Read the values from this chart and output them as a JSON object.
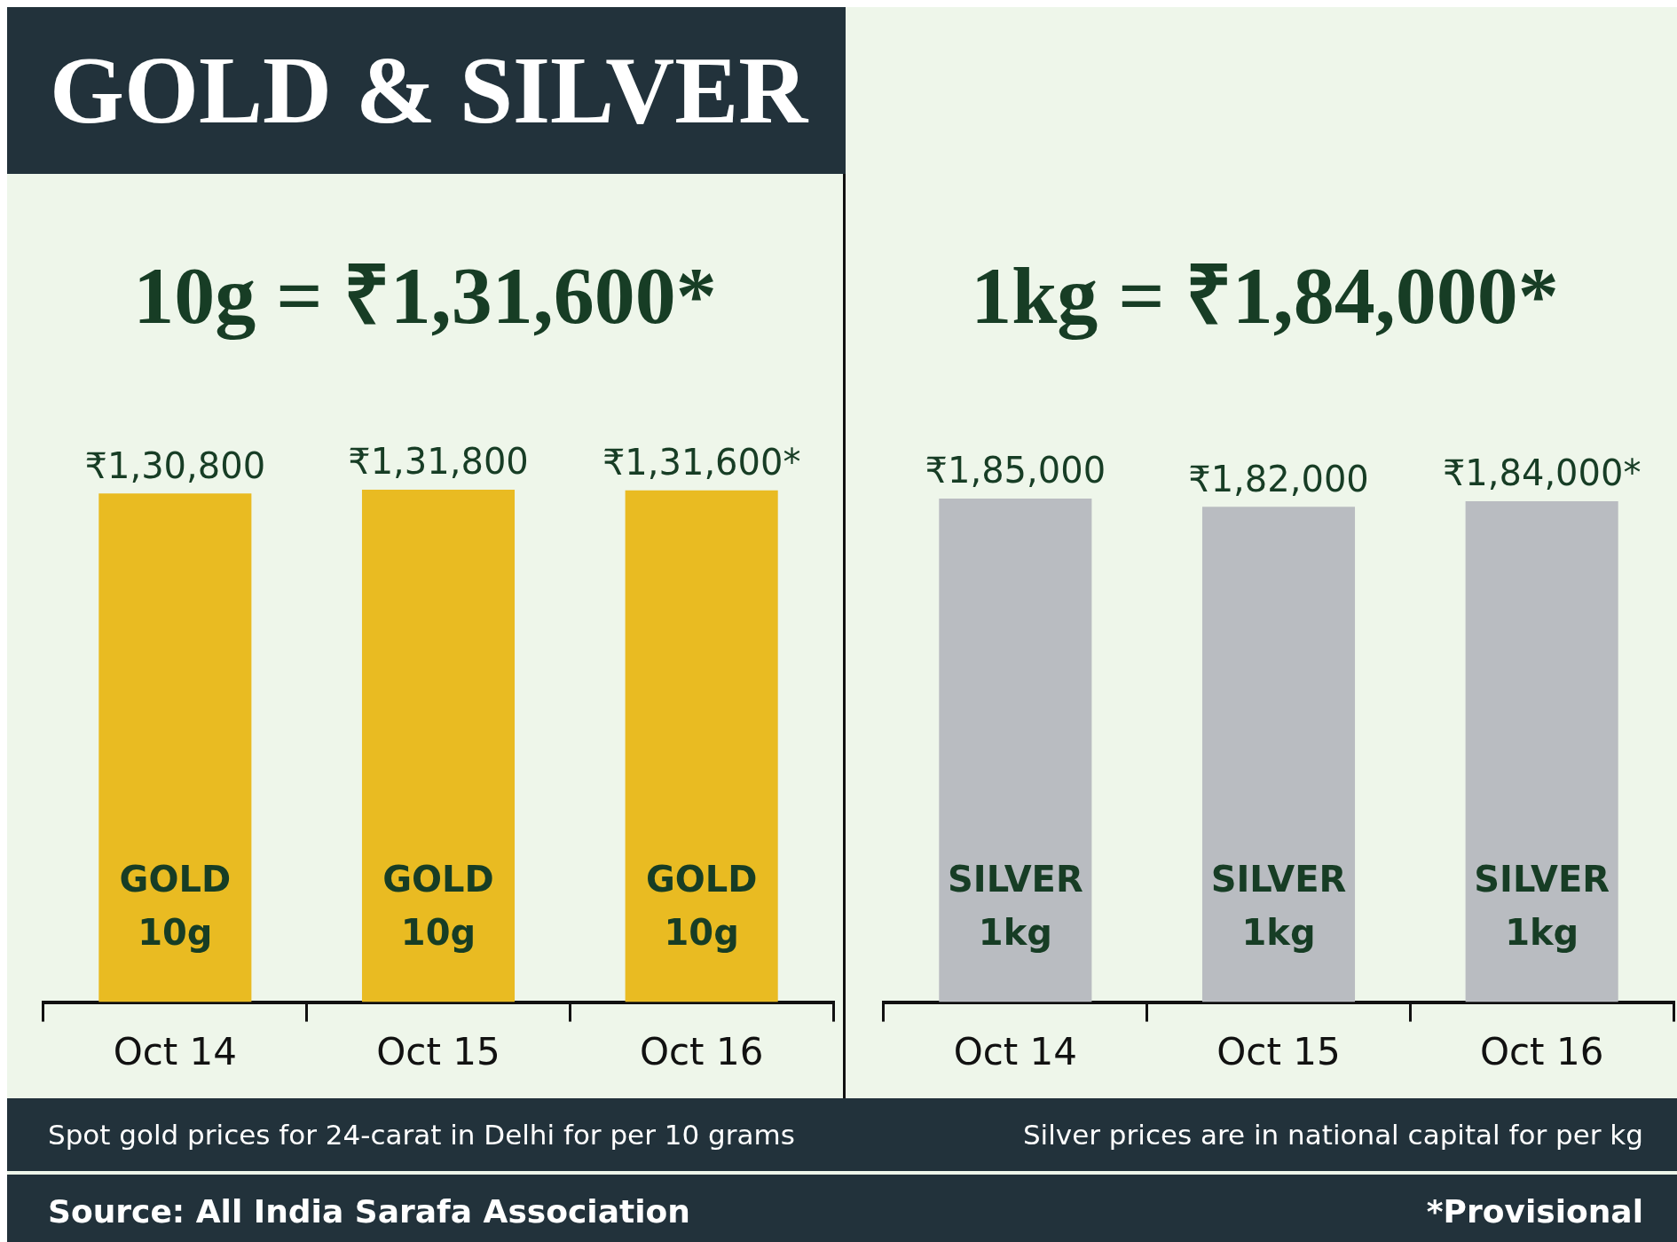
{
  "chart_data": [
    {
      "type": "bar",
      "title": "GOLD & SILVER",
      "subtitle": "10g = ₹1,31,600*",
      "categories": [
        "Oct 14",
        "Oct 15",
        "Oct 16"
      ],
      "values": [
        130800,
        131800,
        131600
      ],
      "value_labels": [
        "₹1,30,800",
        "₹1,31,800",
        "₹1,31,600*"
      ],
      "color": "#e9bb22",
      "tick_labels": "x",
      "grid": false,
      "legend": false,
      "annotations": [
        "GOLD\n10g",
        "GOLD\n10g",
        "GOLD\n10g",
        "Spot gold prices for 24-carat in Delhi for per 10 grams",
        "Source: All India Sarafa Association"
      ]
    },
    {
      "type": "bar",
      "subtitle": "1kg = ₹1,84,000*",
      "categories": [
        "Oct 14",
        "Oct 15",
        "Oct 16"
      ],
      "values": [
        185000,
        182000,
        184000
      ],
      "value_labels": [
        "₹1,85,000",
        "₹1,82,000",
        "₹1,84,000*"
      ],
      "color": "#b9bcc1",
      "tick_labels": "x",
      "grid": false,
      "legend": false,
      "annotations": [
        "SILVER\n1kg",
        "SILVER\n1kg",
        "SILVER\n1kg",
        "Silver prices are in national capital for per kg",
        "*Provisional"
      ]
    }
  ]
}
